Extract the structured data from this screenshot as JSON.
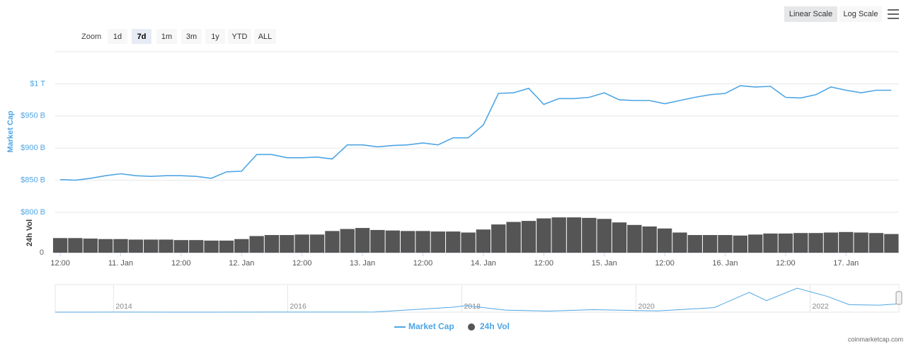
{
  "chart_data": {
    "type": "line",
    "x": [
      12,
      15,
      18,
      21,
      24,
      27,
      30,
      33,
      36,
      39,
      42,
      45,
      48,
      51,
      54,
      57,
      60,
      63,
      66,
      69,
      72,
      75,
      78,
      81,
      84,
      87,
      90,
      93,
      96,
      99,
      102,
      105,
      108,
      111,
      114,
      117,
      120,
      123,
      126,
      129,
      132,
      135,
      138,
      141,
      144,
      147,
      150,
      153,
      156,
      159,
      162,
      165,
      168,
      171,
      174,
      177
    ],
    "xlim": [
      11,
      178.5
    ],
    "xticks": [
      {
        "value": 12,
        "label": "12:00"
      },
      {
        "value": 24,
        "label": "11. Jan"
      },
      {
        "value": 36,
        "label": "12:00"
      },
      {
        "value": 48,
        "label": "12. Jan"
      },
      {
        "value": 60,
        "label": "12:00"
      },
      {
        "value": 72,
        "label": "13. Jan"
      },
      {
        "value": 84,
        "label": "12:00"
      },
      {
        "value": 96,
        "label": "14. Jan"
      },
      {
        "value": 108,
        "label": "12:00"
      },
      {
        "value": 120,
        "label": "15. Jan"
      },
      {
        "value": 132,
        "label": "12:00"
      },
      {
        "value": 144,
        "label": "16. Jan"
      },
      {
        "value": 156,
        "label": "12:00"
      },
      {
        "value": 168,
        "label": "17. Jan"
      }
    ],
    "ylabel": "Market Cap",
    "ylim": [
      800,
      1050
    ],
    "yticks": [
      {
        "value": 800,
        "label": "$800 B"
      },
      {
        "value": 850,
        "label": "$850 B"
      },
      {
        "value": 900,
        "label": "$900 B"
      },
      {
        "value": 950,
        "label": "$950 B"
      },
      {
        "value": 1000,
        "label": "$1 T"
      }
    ],
    "y2label": "24h Vol",
    "y2lim": [
      0,
      80
    ],
    "y2ticks": [
      0
    ],
    "grid": true,
    "series": [
      {
        "name": "Market Cap",
        "color": "#4ea6e4",
        "values": [
          851,
          850,
          853,
          857,
          860,
          857,
          856,
          857,
          857,
          856,
          853,
          863,
          864,
          890,
          890,
          885,
          885,
          886,
          883,
          905,
          905,
          902,
          904,
          905,
          908,
          905,
          916,
          916,
          936,
          985,
          986,
          993,
          968,
          977,
          977,
          979,
          986,
          975,
          974,
          974,
          969,
          974,
          979,
          983,
          985,
          997,
          995,
          996,
          979,
          978,
          983,
          995,
          990,
          986,
          990,
          990
        ]
      },
      {
        "name": "24h Vol",
        "color": "#555555",
        "type": "bar",
        "axis": "y2",
        "values": [
          29,
          29,
          28,
          27,
          27,
          26,
          26,
          26,
          25,
          25,
          24,
          24,
          27,
          33,
          35,
          35,
          36,
          36,
          43,
          47,
          49,
          45,
          44,
          43,
          43,
          42,
          42,
          40,
          46,
          56,
          61,
          63,
          68,
          70,
          70,
          69,
          67,
          60,
          55,
          52,
          48,
          40,
          35,
          35,
          35,
          34,
          36,
          38,
          38,
          39,
          39,
          40,
          41,
          40,
          39,
          37
        ]
      }
    ],
    "navigator": {
      "x": [
        2013.33,
        2014,
        2015,
        2016,
        2017,
        2017.9,
        2018.05,
        2018.5,
        2019,
        2019.5,
        2020,
        2020.25,
        2020.9,
        2021.3,
        2021.5,
        2021.85,
        2022.2,
        2022.45,
        2022.8,
        2023.02
      ],
      "values": [
        1,
        10,
        4,
        7,
        18,
        600,
        800,
        250,
        130,
        300,
        200,
        150,
        550,
        2400,
        1400,
        2900,
        1900,
        900,
        850,
        1000
      ],
      "xlim": [
        2013.33,
        2023.02
      ],
      "ylim": [
        0,
        3000
      ],
      "xticks": [
        2014,
        2016,
        2018,
        2020,
        2022
      ],
      "color": "#4ea6e4"
    }
  },
  "zoom": {
    "label": "Zoom",
    "buttons": [
      "1d",
      "7d",
      "1m",
      "3m",
      "1y",
      "YTD",
      "ALL"
    ],
    "selected": 1
  },
  "scale_buttons": [
    "Linear Scale",
    "Log Scale"
  ],
  "scale_selected": 0,
  "credit": "coinmarketcap.com"
}
